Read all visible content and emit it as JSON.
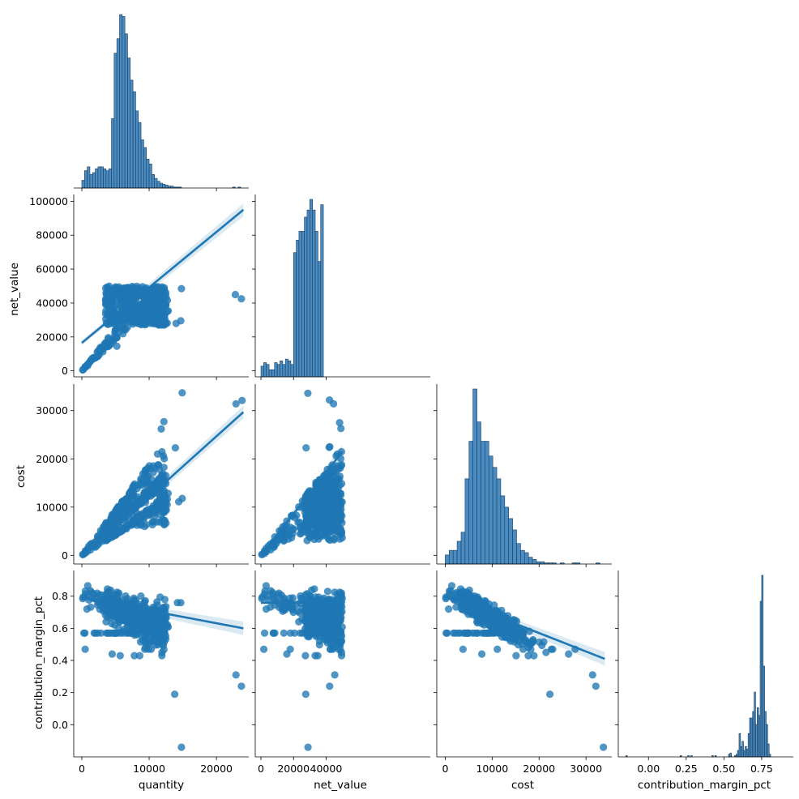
{
  "chart_data": {
    "type": "scatter",
    "variables": [
      "quantity",
      "net_value",
      "cost",
      "contribution_margin_pct"
    ],
    "axis_labels": {
      "quantity": "quantity",
      "net_value": "net_value",
      "cost": "cost",
      "contribution_margin_pct": "contribution_margin_pct"
    },
    "ranges": {
      "quantity": [
        -1200,
        24800
      ],
      "net_value": [
        -3500,
        104000
      ],
      "cost": [
        -1800,
        35500
      ],
      "contribution_margin_pct": [
        -0.2,
        0.96
      ]
    },
    "ticks": {
      "quantity": [
        0,
        10000,
        20000
      ],
      "net_value": [
        0,
        20000,
        40000,
        60000,
        80000,
        100000
      ],
      "cost": [
        0,
        10000,
        20000,
        30000
      ],
      "contribution_margin_pct_y": [
        0.0,
        0.2,
        0.4,
        0.6,
        0.8
      ],
      "contribution_margin_pct_x": [
        0.0,
        0.25,
        0.5,
        0.75
      ]
    },
    "tick_labels": {
      "quantity": [
        "0",
        "10000",
        "20000"
      ],
      "net_value": [
        "0",
        "20000",
        "40000",
        "60000",
        "80000",
        "100000"
      ],
      "net_value_x": [
        "0",
        "20000",
        "40000"
      ],
      "cost": [
        "0",
        "10000",
        "20000",
        "30000"
      ],
      "contribution_margin_pct_y": [
        "0.0",
        "0.2",
        "0.4",
        "0.6",
        "0.8"
      ],
      "contribution_margin_pct_x": [
        "0.00",
        "0.25",
        "0.50",
        "0.75"
      ]
    },
    "histograms": {
      "quantity": {
        "bin_start": 0,
        "bin_width": 400,
        "counts": [
          8,
          18,
          22,
          14,
          16,
          20,
          22,
          22,
          20,
          18,
          20,
          72,
          140,
          155,
          180,
          178,
          160,
          135,
          112,
          100,
          80,
          68,
          50,
          42,
          30,
          25,
          14,
          10,
          7,
          5,
          4,
          3,
          2,
          2,
          1,
          1,
          1,
          0,
          0,
          0,
          0,
          0,
          0,
          0,
          0,
          0,
          0,
          0,
          0,
          0,
          0,
          0,
          0,
          0,
          0,
          0,
          1,
          0,
          1
        ]
      },
      "net_value": {
        "bin_start": 0,
        "bin_width": 1667,
        "counts": [
          6,
          8,
          7,
          4,
          4,
          8,
          7,
          9,
          7,
          10,
          9,
          7,
          70,
          77,
          82,
          82,
          90,
          94,
          100,
          94,
          82,
          65,
          97
        ]
      },
      "cost": {
        "bin_start": 0,
        "bin_width": 845,
        "counts": [
          8,
          12,
          12,
          20,
          28,
          75,
          108,
          154,
          125,
          108,
          108,
          95,
          85,
          75,
          60,
          50,
          40,
          30,
          18,
          12,
          10,
          6,
          4,
          2,
          2,
          1,
          1,
          1,
          0,
          1,
          0,
          0,
          1,
          1,
          0,
          0,
          0,
          0,
          1
        ]
      },
      "contribution_margin_pct": {
        "bin_start": -0.15,
        "bin_width": 0.01,
        "counts": [
          1,
          0,
          0,
          0,
          0,
          0,
          0,
          0,
          0,
          0,
          0,
          0,
          0,
          0,
          0,
          0,
          0,
          0,
          0,
          0,
          0,
          0,
          0,
          0,
          0,
          0,
          0,
          0,
          0,
          0,
          0,
          0,
          0,
          0,
          0,
          0,
          1,
          0,
          0,
          0,
          0,
          1,
          0,
          1,
          0,
          0,
          0,
          0,
          0,
          0,
          0,
          0,
          0,
          0,
          0,
          0,
          0,
          1,
          0,
          1,
          0,
          0,
          0,
          0,
          0,
          0,
          0,
          0,
          2,
          3,
          0,
          0,
          1,
          2,
          5,
          18,
          8,
          12,
          5,
          8,
          6,
          18,
          30,
          30,
          35,
          50,
          25,
          38,
          32,
          120,
          140,
          70,
          35,
          25,
          10,
          2
        ]
      }
    },
    "regressions": {
      "net_value_vs_quantity": {
        "x": [
          0,
          24000
        ],
        "y": [
          16500,
          95000
        ]
      },
      "cost_vs_quantity": {
        "x": [
          0,
          24000
        ],
        "y": [
          -400,
          29700
        ]
      },
      "cost_vs_net_value": {
        "x": [
          0,
          50000
        ],
        "y": [
          0,
          21500
        ]
      },
      "cmp_vs_quantity": {
        "x": [
          0,
          24000
        ],
        "y": [
          0.79,
          0.6
        ]
      },
      "cmp_vs_net_value": {
        "x": [
          0,
          50000
        ],
        "y": [
          0.76,
          0.76
        ]
      },
      "cmp_vs_cost": {
        "x": [
          0,
          34000
        ],
        "y": [
          0.8,
          0.41
        ]
      }
    },
    "outliers": {
      "quantity_net_value": [
        [
          14000,
          28000
        ],
        [
          14700,
          29500
        ],
        [
          14800,
          48500
        ],
        [
          12700,
          41500
        ],
        [
          5200,
          14500
        ],
        [
          22800,
          45000
        ],
        [
          23700,
          42500
        ]
      ],
      "quantity_cost": [
        [
          14900,
          33700
        ],
        [
          23800,
          32100
        ],
        [
          22900,
          31400
        ],
        [
          11800,
          26200
        ],
        [
          12200,
          27700
        ],
        [
          13900,
          22300
        ],
        [
          14900,
          11800
        ],
        [
          14400,
          11100
        ]
      ],
      "net_value_cost": [
        [
          28800,
          33600
        ],
        [
          42100,
          32200
        ],
        [
          44600,
          31400
        ],
        [
          48300,
          27500
        ],
        [
          49100,
          26300
        ],
        [
          27700,
          22300
        ],
        [
          41900,
          22400
        ],
        [
          42300,
          22500
        ]
      ],
      "quantity_cmp": [
        [
          14800,
          -0.14
        ],
        [
          13800,
          0.19
        ],
        [
          22900,
          0.31
        ],
        [
          23700,
          0.24
        ],
        [
          9900,
          0.47
        ],
        [
          10300,
          0.47
        ],
        [
          11900,
          0.43
        ],
        [
          7800,
          0.43
        ],
        [
          8600,
          0.43
        ],
        [
          5700,
          0.43
        ],
        [
          4500,
          0.44
        ],
        [
          14200,
          0.76
        ],
        [
          14700,
          0.76
        ],
        [
          500,
          0.47
        ],
        [
          300,
          0.57
        ]
      ],
      "net_value_cmp": [
        [
          28900,
          -0.14
        ],
        [
          27500,
          0.19
        ],
        [
          45300,
          0.31
        ],
        [
          42200,
          0.24
        ],
        [
          42500,
          0.47
        ],
        [
          42900,
          0.47
        ],
        [
          48700,
          0.47
        ],
        [
          49500,
          0.43
        ],
        [
          33300,
          0.43
        ],
        [
          34900,
          0.43
        ],
        [
          27300,
          0.43
        ],
        [
          28600,
          0.55
        ],
        [
          15900,
          0.44
        ],
        [
          18000,
          0.47
        ],
        [
          1800,
          0.47
        ]
      ],
      "cost_cmp": [
        [
          33700,
          -0.14
        ],
        [
          22300,
          0.19
        ],
        [
          31400,
          0.31
        ],
        [
          32100,
          0.24
        ],
        [
          26300,
          0.44
        ],
        [
          27700,
          0.47
        ],
        [
          22600,
          0.47
        ],
        [
          22900,
          0.47
        ],
        [
          17700,
          0.43
        ],
        [
          18900,
          0.43
        ],
        [
          15100,
          0.43
        ],
        [
          11100,
          0.47
        ],
        [
          7800,
          0.44
        ],
        [
          3800,
          0.47
        ],
        [
          200,
          0.57
        ]
      ]
    },
    "grid": false,
    "legend": "none"
  }
}
